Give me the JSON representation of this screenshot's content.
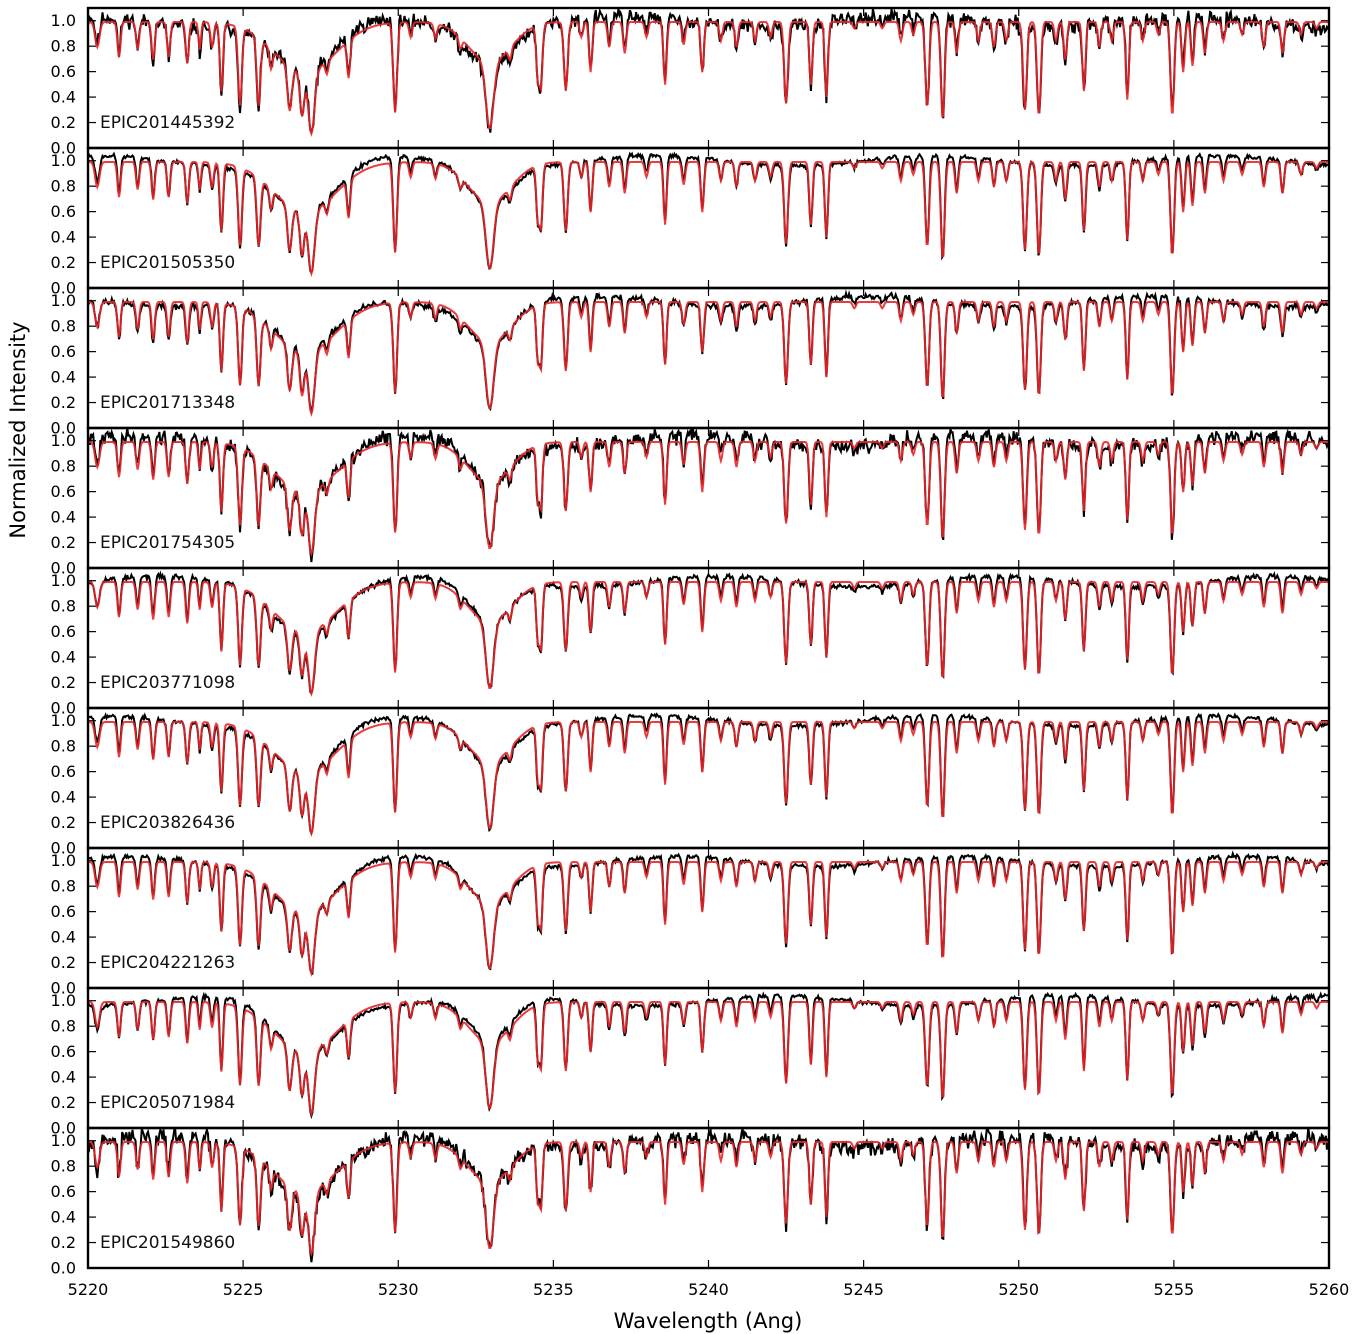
{
  "chart_data": {
    "type": "line",
    "xlabel": "Wavelength (Ang)",
    "ylabel": "Normalized Intensity",
    "xlim": [
      5220,
      5260
    ],
    "ylim": [
      0.0,
      1.1
    ],
    "x_ticks": [
      "5220",
      "5225",
      "5230",
      "5235",
      "5240",
      "5245",
      "5250",
      "5255",
      "5260"
    ],
    "y_ticks": [
      "0.0",
      "0.2",
      "0.4",
      "0.6",
      "0.8",
      "1.0"
    ],
    "grid": false,
    "legend": "none",
    "colors": {
      "observed": "#000000",
      "model": "#e8262a"
    },
    "lines": [
      {
        "w": 5220.3,
        "d": 0.2,
        "s": 0.07
      },
      {
        "w": 5221.0,
        "d": 0.28,
        "s": 0.05
      },
      {
        "w": 5221.6,
        "d": 0.22,
        "s": 0.05
      },
      {
        "w": 5222.1,
        "d": 0.3,
        "s": 0.05
      },
      {
        "w": 5222.6,
        "d": 0.28,
        "s": 0.05
      },
      {
        "w": 5223.2,
        "d": 0.33,
        "s": 0.05
      },
      {
        "w": 5223.6,
        "d": 0.22,
        "s": 0.04
      },
      {
        "w": 5224.0,
        "d": 0.2,
        "s": 0.05
      },
      {
        "w": 5224.3,
        "d": 0.55,
        "s": 0.05
      },
      {
        "w": 5224.9,
        "d": 0.65,
        "s": 0.06
      },
      {
        "w": 5225.5,
        "d": 0.62,
        "s": 0.06
      },
      {
        "w": 5225.9,
        "d": 0.2,
        "s": 0.05
      },
      {
        "w": 5226.5,
        "d": 0.55,
        "s": 0.07
      },
      {
        "w": 5226.9,
        "d": 0.58,
        "s": 0.07
      },
      {
        "w": 5227.2,
        "d": 0.82,
        "s": 0.1
      },
      {
        "w": 5227.0,
        "d": 0.4,
        "s": 1.0
      },
      {
        "w": 5227.7,
        "d": 0.15,
        "s": 0.05
      },
      {
        "w": 5228.4,
        "d": 0.35,
        "s": 0.05
      },
      {
        "w": 5229.9,
        "d": 0.72,
        "s": 0.06
      },
      {
        "w": 5230.4,
        "d": 0.12,
        "s": 0.05
      },
      {
        "w": 5231.2,
        "d": 0.12,
        "s": 0.05
      },
      {
        "w": 5232.0,
        "d": 0.1,
        "s": 0.05
      },
      {
        "w": 5232.95,
        "d": 0.78,
        "s": 0.12
      },
      {
        "w": 5232.95,
        "d": 0.32,
        "s": 0.7
      },
      {
        "w": 5233.6,
        "d": 0.12,
        "s": 0.05
      },
      {
        "w": 5234.5,
        "d": 0.45,
        "s": 0.05
      },
      {
        "w": 5234.6,
        "d": 0.5,
        "s": 0.05
      },
      {
        "w": 5235.4,
        "d": 0.55,
        "s": 0.06
      },
      {
        "w": 5235.9,
        "d": 0.12,
        "s": 0.05
      },
      {
        "w": 5236.2,
        "d": 0.4,
        "s": 0.05
      },
      {
        "w": 5236.8,
        "d": 0.2,
        "s": 0.05
      },
      {
        "w": 5237.3,
        "d": 0.25,
        "s": 0.05
      },
      {
        "w": 5238.0,
        "d": 0.12,
        "s": 0.05
      },
      {
        "w": 5238.6,
        "d": 0.5,
        "s": 0.05
      },
      {
        "w": 5239.2,
        "d": 0.18,
        "s": 0.05
      },
      {
        "w": 5239.8,
        "d": 0.4,
        "s": 0.05
      },
      {
        "w": 5240.4,
        "d": 0.15,
        "s": 0.05
      },
      {
        "w": 5240.9,
        "d": 0.2,
        "s": 0.05
      },
      {
        "w": 5241.5,
        "d": 0.15,
        "s": 0.05
      },
      {
        "w": 5242.0,
        "d": 0.12,
        "s": 0.05
      },
      {
        "w": 5242.5,
        "d": 0.65,
        "s": 0.06
      },
      {
        "w": 5243.3,
        "d": 0.5,
        "s": 0.05
      },
      {
        "w": 5243.8,
        "d": 0.6,
        "s": 0.05
      },
      {
        "w": 5244.7,
        "d": 0.05,
        "s": 0.05
      },
      {
        "w": 5245.6,
        "d": 0.05,
        "s": 0.05
      },
      {
        "w": 5246.2,
        "d": 0.15,
        "s": 0.05
      },
      {
        "w": 5246.6,
        "d": 0.1,
        "s": 0.05
      },
      {
        "w": 5247.05,
        "d": 0.68,
        "s": 0.06
      },
      {
        "w": 5247.55,
        "d": 0.78,
        "s": 0.06
      },
      {
        "w": 5248.0,
        "d": 0.25,
        "s": 0.05
      },
      {
        "w": 5248.7,
        "d": 0.15,
        "s": 0.05
      },
      {
        "w": 5249.2,
        "d": 0.2,
        "s": 0.05
      },
      {
        "w": 5249.6,
        "d": 0.15,
        "s": 0.05
      },
      {
        "w": 5250.2,
        "d": 0.7,
        "s": 0.06
      },
      {
        "w": 5250.65,
        "d": 0.75,
        "s": 0.06
      },
      {
        "w": 5251.2,
        "d": 0.15,
        "s": 0.05
      },
      {
        "w": 5251.5,
        "d": 0.3,
        "s": 0.05
      },
      {
        "w": 5252.1,
        "d": 0.55,
        "s": 0.05
      },
      {
        "w": 5252.6,
        "d": 0.2,
        "s": 0.05
      },
      {
        "w": 5253.0,
        "d": 0.15,
        "s": 0.05
      },
      {
        "w": 5253.5,
        "d": 0.62,
        "s": 0.05
      },
      {
        "w": 5254.0,
        "d": 0.15,
        "s": 0.05
      },
      {
        "w": 5254.5,
        "d": 0.1,
        "s": 0.05
      },
      {
        "w": 5254.95,
        "d": 0.75,
        "s": 0.06
      },
      {
        "w": 5255.3,
        "d": 0.4,
        "s": 0.05
      },
      {
        "w": 5255.6,
        "d": 0.35,
        "s": 0.05
      },
      {
        "w": 5256.0,
        "d": 0.25,
        "s": 0.05
      },
      {
        "w": 5256.6,
        "d": 0.15,
        "s": 0.05
      },
      {
        "w": 5257.2,
        "d": 0.1,
        "s": 0.05
      },
      {
        "w": 5257.9,
        "d": 0.2,
        "s": 0.05
      },
      {
        "w": 5258.5,
        "d": 0.25,
        "s": 0.05
      },
      {
        "w": 5259.1,
        "d": 0.1,
        "s": 0.05
      },
      {
        "w": 5259.6,
        "d": 0.05,
        "s": 0.05
      }
    ],
    "panels": [
      {
        "label": "EPIC201445392",
        "noise": 0.035,
        "seed": 11
      },
      {
        "label": "EPIC201505350",
        "noise": 0.01,
        "seed": 23
      },
      {
        "label": "EPIC201713348",
        "noise": 0.015,
        "seed": 37
      },
      {
        "label": "EPIC201754305",
        "noise": 0.035,
        "seed": 41
      },
      {
        "label": "EPIC203771098",
        "noise": 0.012,
        "seed": 53
      },
      {
        "label": "EPIC203826436",
        "noise": 0.01,
        "seed": 67
      },
      {
        "label": "EPIC204221263",
        "noise": 0.01,
        "seed": 79
      },
      {
        "label": "EPIC205071984",
        "noise": 0.01,
        "seed": 83
      },
      {
        "label": "EPIC201549860",
        "noise": 0.04,
        "seed": 97
      }
    ]
  }
}
